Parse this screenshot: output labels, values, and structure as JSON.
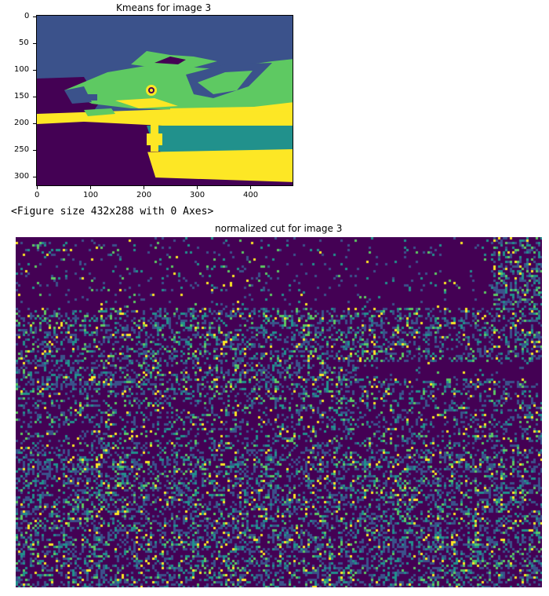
{
  "output_text": "<Figure size 432x288 with 0 Axes>",
  "colors": {
    "c0": "#440154",
    "c1": "#3b528b",
    "c2": "#21918c",
    "c3": "#5ec962",
    "c4": "#fde725"
  },
  "chart_data": [
    {
      "type": "heatmap",
      "title": "Kmeans for image 3",
      "xlabel": "",
      "ylabel": "",
      "xlim": [
        0,
        480
      ],
      "ylim": [
        320,
        0
      ],
      "xticks": [
        "0",
        "100",
        "200",
        "300",
        "400"
      ],
      "yticks": [
        "0",
        "50",
        "100",
        "150",
        "200",
        "250",
        "300"
      ],
      "colormap": "viridis",
      "clusters": 5
    },
    {
      "type": "heatmap",
      "title": "normalized cut for image 3",
      "axes_visible": false,
      "colormap": "viridis"
    }
  ]
}
